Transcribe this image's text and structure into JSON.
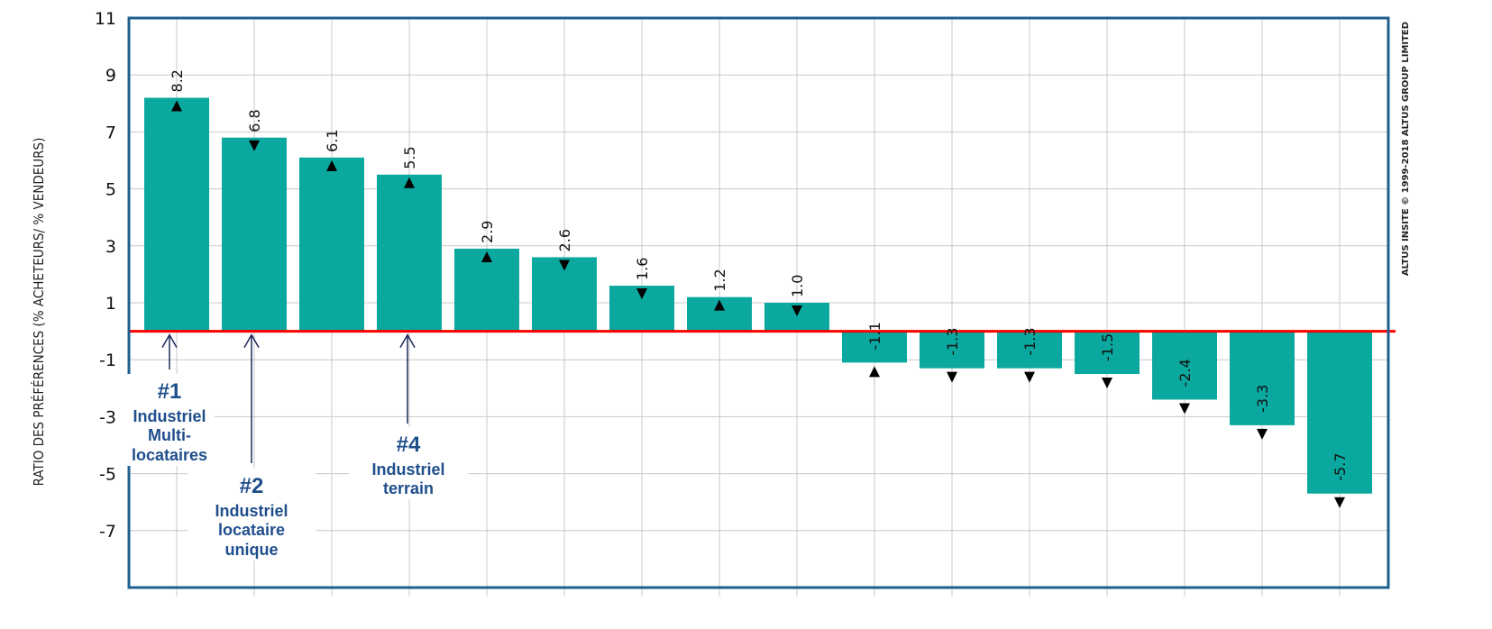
{
  "chart_data": {
    "type": "bar",
    "title": "",
    "xlabel": "",
    "ylabel": "RATIO DES PRÉFÉRENCES (% ACHETEURS/ % VENDEURS)",
    "ylim": [
      -9,
      11
    ],
    "yticks": [
      11,
      9,
      7,
      5,
      3,
      1,
      -1,
      -3,
      -5,
      -7
    ],
    "values": [
      8.2,
      6.8,
      6.1,
      5.5,
      2.9,
      2.6,
      1.6,
      1.2,
      1.0,
      -1.1,
      -1.3,
      -1.3,
      -1.5,
      -2.4,
      -3.3,
      -5.7
    ],
    "labels": [
      "8.2",
      "6.8",
      "6.1",
      "5.5",
      "2.9",
      "2.6",
      "1.6",
      "1.2",
      "1.0",
      "-1.1",
      "-1.3",
      "-1.3",
      "-1.5",
      "-2.4",
      "-3.3",
      "-5.7"
    ],
    "trend": [
      "up",
      "down",
      "up",
      "up",
      "up",
      "down",
      "down",
      "up",
      "down",
      "up",
      "down",
      "down",
      "down",
      "down",
      "down",
      "down"
    ],
    "bar_color": "#0aa89e",
    "zero_line_color": "#ff0000",
    "frame_color": "#1f5f8f",
    "grid": true,
    "copyright": "ALTUS INSITE © 1999-2018 ALTUS GROUP LIMITED",
    "callouts": [
      {
        "bar": 0,
        "rank": "#1",
        "lines": [
          "Industriel",
          "Multi-",
          "locataires"
        ]
      },
      {
        "bar": 1,
        "rank": "#2",
        "lines": [
          "Industriel",
          "locataire",
          "unique"
        ]
      },
      {
        "bar": 3,
        "rank": "#4",
        "lines": [
          "Industriel",
          "terrain"
        ]
      }
    ]
  }
}
